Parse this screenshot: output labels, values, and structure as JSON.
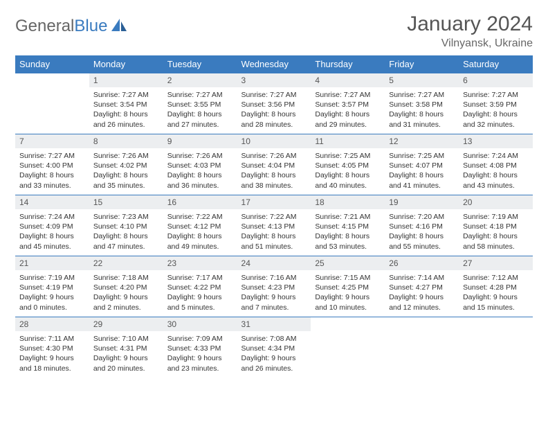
{
  "brand": {
    "part1": "General",
    "part2": "Blue"
  },
  "title": "January 2024",
  "location": "Vilnyansk, Ukraine",
  "colors": {
    "header_bg": "#3a7bbf",
    "daynum_bg": "#eceef0",
    "text": "#333333",
    "title": "#555555",
    "border": "#3a7bbf"
  },
  "weekdays": [
    "Sunday",
    "Monday",
    "Tuesday",
    "Wednesday",
    "Thursday",
    "Friday",
    "Saturday"
  ],
  "weeks": [
    [
      null,
      {
        "n": "1",
        "sr": "7:27 AM",
        "ss": "3:54 PM",
        "dl": "8 hours and 26 minutes."
      },
      {
        "n": "2",
        "sr": "7:27 AM",
        "ss": "3:55 PM",
        "dl": "8 hours and 27 minutes."
      },
      {
        "n": "3",
        "sr": "7:27 AM",
        "ss": "3:56 PM",
        "dl": "8 hours and 28 minutes."
      },
      {
        "n": "4",
        "sr": "7:27 AM",
        "ss": "3:57 PM",
        "dl": "8 hours and 29 minutes."
      },
      {
        "n": "5",
        "sr": "7:27 AM",
        "ss": "3:58 PM",
        "dl": "8 hours and 31 minutes."
      },
      {
        "n": "6",
        "sr": "7:27 AM",
        "ss": "3:59 PM",
        "dl": "8 hours and 32 minutes."
      }
    ],
    [
      {
        "n": "7",
        "sr": "7:27 AM",
        "ss": "4:00 PM",
        "dl": "8 hours and 33 minutes."
      },
      {
        "n": "8",
        "sr": "7:26 AM",
        "ss": "4:02 PM",
        "dl": "8 hours and 35 minutes."
      },
      {
        "n": "9",
        "sr": "7:26 AM",
        "ss": "4:03 PM",
        "dl": "8 hours and 36 minutes."
      },
      {
        "n": "10",
        "sr": "7:26 AM",
        "ss": "4:04 PM",
        "dl": "8 hours and 38 minutes."
      },
      {
        "n": "11",
        "sr": "7:25 AM",
        "ss": "4:05 PM",
        "dl": "8 hours and 40 minutes."
      },
      {
        "n": "12",
        "sr": "7:25 AM",
        "ss": "4:07 PM",
        "dl": "8 hours and 41 minutes."
      },
      {
        "n": "13",
        "sr": "7:24 AM",
        "ss": "4:08 PM",
        "dl": "8 hours and 43 minutes."
      }
    ],
    [
      {
        "n": "14",
        "sr": "7:24 AM",
        "ss": "4:09 PM",
        "dl": "8 hours and 45 minutes."
      },
      {
        "n": "15",
        "sr": "7:23 AM",
        "ss": "4:10 PM",
        "dl": "8 hours and 47 minutes."
      },
      {
        "n": "16",
        "sr": "7:22 AM",
        "ss": "4:12 PM",
        "dl": "8 hours and 49 minutes."
      },
      {
        "n": "17",
        "sr": "7:22 AM",
        "ss": "4:13 PM",
        "dl": "8 hours and 51 minutes."
      },
      {
        "n": "18",
        "sr": "7:21 AM",
        "ss": "4:15 PM",
        "dl": "8 hours and 53 minutes."
      },
      {
        "n": "19",
        "sr": "7:20 AM",
        "ss": "4:16 PM",
        "dl": "8 hours and 55 minutes."
      },
      {
        "n": "20",
        "sr": "7:19 AM",
        "ss": "4:18 PM",
        "dl": "8 hours and 58 minutes."
      }
    ],
    [
      {
        "n": "21",
        "sr": "7:19 AM",
        "ss": "4:19 PM",
        "dl": "9 hours and 0 minutes."
      },
      {
        "n": "22",
        "sr": "7:18 AM",
        "ss": "4:20 PM",
        "dl": "9 hours and 2 minutes."
      },
      {
        "n": "23",
        "sr": "7:17 AM",
        "ss": "4:22 PM",
        "dl": "9 hours and 5 minutes."
      },
      {
        "n": "24",
        "sr": "7:16 AM",
        "ss": "4:23 PM",
        "dl": "9 hours and 7 minutes."
      },
      {
        "n": "25",
        "sr": "7:15 AM",
        "ss": "4:25 PM",
        "dl": "9 hours and 10 minutes."
      },
      {
        "n": "26",
        "sr": "7:14 AM",
        "ss": "4:27 PM",
        "dl": "9 hours and 12 minutes."
      },
      {
        "n": "27",
        "sr": "7:12 AM",
        "ss": "4:28 PM",
        "dl": "9 hours and 15 minutes."
      }
    ],
    [
      {
        "n": "28",
        "sr": "7:11 AM",
        "ss": "4:30 PM",
        "dl": "9 hours and 18 minutes."
      },
      {
        "n": "29",
        "sr": "7:10 AM",
        "ss": "4:31 PM",
        "dl": "9 hours and 20 minutes."
      },
      {
        "n": "30",
        "sr": "7:09 AM",
        "ss": "4:33 PM",
        "dl": "9 hours and 23 minutes."
      },
      {
        "n": "31",
        "sr": "7:08 AM",
        "ss": "4:34 PM",
        "dl": "9 hours and 26 minutes."
      },
      null,
      null,
      null
    ]
  ],
  "labels": {
    "sunrise": "Sunrise:",
    "sunset": "Sunset:",
    "daylight": "Daylight:"
  }
}
